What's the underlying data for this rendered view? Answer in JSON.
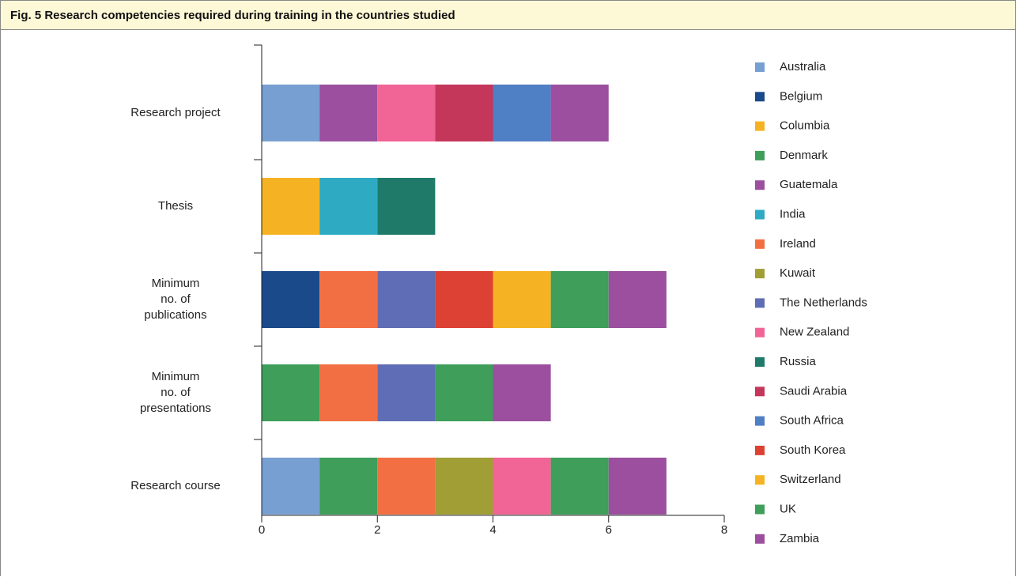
{
  "chart_data": {
    "type": "stacked-bar-horizontal",
    "title": "Fig. 5 Research competencies required during training in the countries studied",
    "categories": [
      "Research project",
      "Thesis",
      "Minimum\nno. of\npublications",
      "Minimum\nno. of\npresentations",
      "Research course"
    ],
    "series": [
      {
        "name": "Australia",
        "color": "#779fd1",
        "values": [
          1,
          0,
          0,
          0,
          1
        ]
      },
      {
        "name": "Belgium",
        "color": "#1a4a8a",
        "values": [
          0,
          0,
          1,
          0,
          0
        ]
      },
      {
        "name": "Columbia",
        "color": "#f5b324",
        "values": [
          0,
          1,
          0,
          0,
          0
        ]
      },
      {
        "name": "Denmark",
        "color": "#3e9e5a",
        "values": [
          0,
          0,
          0,
          1,
          1
        ]
      },
      {
        "name": "Guatemala",
        "color": "#9b4f9e",
        "values": [
          1,
          0,
          0,
          0,
          0
        ]
      },
      {
        "name": "India",
        "color": "#2eabc2",
        "values": [
          0,
          1,
          0,
          0,
          0
        ]
      },
      {
        "name": "Ireland",
        "color": "#f26f43",
        "values": [
          0,
          0,
          1,
          1,
          1
        ]
      },
      {
        "name": "Kuwait",
        "color": "#a09e35",
        "values": [
          0,
          0,
          0,
          0,
          1
        ]
      },
      {
        "name": "The Netherlands",
        "color": "#5e6db5",
        "values": [
          0,
          0,
          1,
          1,
          0
        ]
      },
      {
        "name": "New Zealand",
        "color": "#f06595",
        "values": [
          1,
          0,
          0,
          0,
          1
        ]
      },
      {
        "name": "Russia",
        "color": "#1f7a6a",
        "values": [
          0,
          1,
          0,
          0,
          0
        ]
      },
      {
        "name": "Saudi Arabia",
        "color": "#c4365a",
        "values": [
          1,
          0,
          0,
          0,
          0
        ]
      },
      {
        "name": "South Africa",
        "color": "#4f7fc4",
        "values": [
          1,
          0,
          0,
          0,
          0
        ]
      },
      {
        "name": "South Korea",
        "color": "#dd4133",
        "values": [
          0,
          0,
          1,
          0,
          0
        ]
      },
      {
        "name": "Switzerland",
        "color": "#f5b324",
        "values": [
          0,
          0,
          1,
          0,
          0
        ]
      },
      {
        "name": "UK",
        "color": "#3e9e5a",
        "values": [
          0,
          0,
          1,
          1,
          1
        ]
      },
      {
        "name": "Zambia",
        "color": "#9b4f9e",
        "values": [
          1,
          0,
          1,
          1,
          1
        ]
      }
    ],
    "xlim": [
      0,
      8
    ],
    "xticks": [
      0,
      2,
      4,
      6,
      8
    ],
    "legend": "right"
  }
}
